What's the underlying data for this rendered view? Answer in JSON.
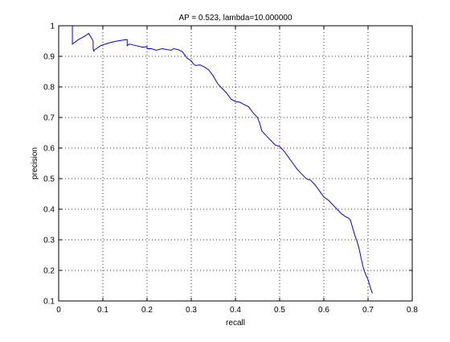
{
  "chart_data": {
    "type": "line",
    "title": "AP = 0.523, lambda=10.000000",
    "xlabel": "recall",
    "ylabel": "precision",
    "xlim": [
      0,
      0.8
    ],
    "ylim": [
      0.1,
      1
    ],
    "grid": true,
    "xticks": [
      0,
      0.1,
      0.2,
      0.3,
      0.4,
      0.5,
      0.6,
      0.7,
      0.8
    ],
    "yticks": [
      0.1,
      0.2,
      0.3,
      0.4,
      0.5,
      0.6,
      0.7,
      0.8,
      0.9,
      1
    ],
    "xtick_labels": [
      "0",
      "0.1",
      "0.2",
      "0.3",
      "0.4",
      "0.5",
      "0.6",
      "0.7",
      "0.8"
    ],
    "ytick_labels": [
      "0.1",
      "0.2",
      "0.3",
      "0.4",
      "0.5",
      "0.6",
      "0.7",
      "0.8",
      "0.9",
      "1"
    ],
    "line_color": "#0000ff",
    "series": [
      {
        "x": [
          0.031,
          0.031,
          0.031,
          0.045,
          0.058,
          0.068,
          0.078,
          0.078,
          0.08,
          0.08,
          0.085,
          0.095,
          0.11,
          0.125,
          0.14,
          0.155,
          0.155,
          0.16,
          0.175,
          0.19,
          0.2,
          0.2,
          0.21,
          0.22,
          0.235,
          0.245,
          0.255,
          0.26,
          0.27,
          0.28,
          0.285,
          0.29,
          0.3,
          0.305,
          0.31,
          0.32,
          0.33,
          0.34,
          0.35,
          0.36,
          0.37,
          0.38,
          0.39,
          0.4,
          0.41,
          0.42,
          0.43,
          0.44,
          0.45,
          0.455,
          0.46,
          0.47,
          0.48,
          0.49,
          0.5,
          0.51,
          0.52,
          0.53,
          0.54,
          0.55,
          0.56,
          0.57,
          0.58,
          0.59,
          0.6,
          0.61,
          0.62,
          0.63,
          0.64,
          0.65,
          0.655,
          0.66,
          0.665,
          0.67,
          0.675,
          0.68,
          0.685,
          0.69,
          0.695,
          0.7,
          0.705,
          0.71
        ],
        "y": [
          1.0,
          0.985,
          0.94,
          0.955,
          0.965,
          0.975,
          0.95,
          0.925,
          0.915,
          0.92,
          0.925,
          0.935,
          0.942,
          0.948,
          0.952,
          0.955,
          0.935,
          0.94,
          0.935,
          0.93,
          0.932,
          0.925,
          0.925,
          0.92,
          0.925,
          0.922,
          0.92,
          0.925,
          0.922,
          0.915,
          0.905,
          0.895,
          0.885,
          0.875,
          0.87,
          0.872,
          0.865,
          0.855,
          0.835,
          0.81,
          0.795,
          0.78,
          0.76,
          0.752,
          0.75,
          0.742,
          0.735,
          0.715,
          0.7,
          0.68,
          0.655,
          0.64,
          0.625,
          0.61,
          0.605,
          0.59,
          0.57,
          0.55,
          0.53,
          0.515,
          0.5,
          0.495,
          0.48,
          0.46,
          0.44,
          0.43,
          0.415,
          0.4,
          0.385,
          0.375,
          0.372,
          0.365,
          0.34,
          0.315,
          0.295,
          0.27,
          0.235,
          0.205,
          0.185,
          0.17,
          0.145,
          0.125
        ]
      }
    ]
  }
}
